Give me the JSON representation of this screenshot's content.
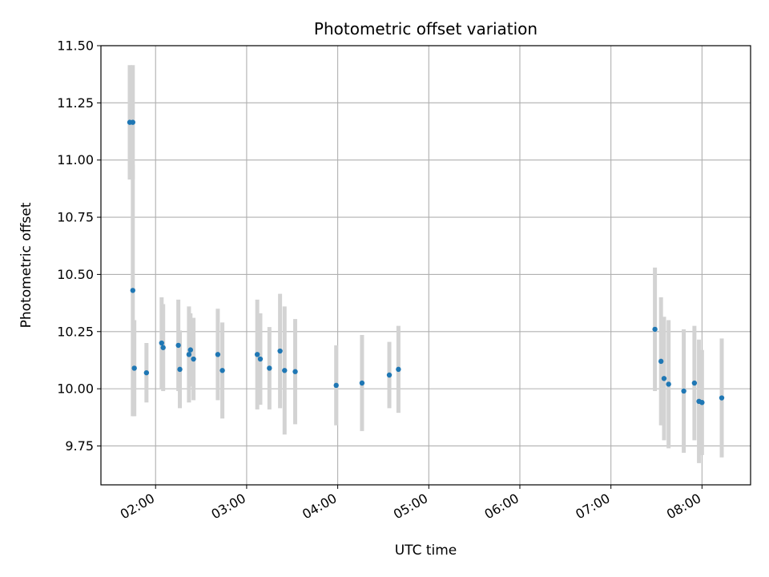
{
  "chart_data": {
    "type": "scatter",
    "title": "Photometric offset variation",
    "xlabel": "UTC time",
    "ylabel": "Photometric offset",
    "xlim": [
      "01:24",
      "08:32"
    ],
    "ylim": [
      9.58,
      11.5
    ],
    "x_ticks": [
      "02:00",
      "03:00",
      "04:00",
      "05:00",
      "06:00",
      "07:00",
      "08:00"
    ],
    "y_ticks": [
      "9.75",
      "10.00",
      "10.25",
      "10.50",
      "10.75",
      "11.00",
      "11.25",
      "11.50"
    ],
    "grid": true,
    "point_color": "#1f77b4",
    "errorbar_color": "#d3d3d3",
    "points": [
      {
        "t": "01:43",
        "y": 11.165,
        "err": 0.25
      },
      {
        "t": "01:45",
        "y": 11.165,
        "err": 0.25
      },
      {
        "t": "01:45",
        "y": 10.43,
        "err": 0.55
      },
      {
        "t": "01:46",
        "y": 10.09,
        "err": 0.21
      },
      {
        "t": "01:54",
        "y": 10.07,
        "err": 0.13
      },
      {
        "t": "02:04",
        "y": 10.2,
        "err": 0.2
      },
      {
        "t": "02:05",
        "y": 10.18,
        "err": 0.19
      },
      {
        "t": "02:15",
        "y": 10.19,
        "err": 0.2
      },
      {
        "t": "02:16",
        "y": 10.085,
        "err": 0.17
      },
      {
        "t": "02:22",
        "y": 10.15,
        "err": 0.21
      },
      {
        "t": "02:23",
        "y": 10.17,
        "err": 0.16
      },
      {
        "t": "02:25",
        "y": 10.13,
        "err": 0.18
      },
      {
        "t": "02:41",
        "y": 10.15,
        "err": 0.2
      },
      {
        "t": "02:44",
        "y": 10.08,
        "err": 0.21
      },
      {
        "t": "03:07",
        "y": 10.15,
        "err": 0.24
      },
      {
        "t": "03:09",
        "y": 10.13,
        "err": 0.2
      },
      {
        "t": "03:15",
        "y": 10.09,
        "err": 0.18
      },
      {
        "t": "03:22",
        "y": 10.165,
        "err": 0.25
      },
      {
        "t": "03:25",
        "y": 10.08,
        "err": 0.28
      },
      {
        "t": "03:32",
        "y": 10.075,
        "err": 0.23
      },
      {
        "t": "03:59",
        "y": 10.015,
        "err": 0.175
      },
      {
        "t": "04:16",
        "y": 10.025,
        "err": 0.21
      },
      {
        "t": "04:34",
        "y": 10.06,
        "err": 0.145
      },
      {
        "t": "04:40",
        "y": 10.085,
        "err": 0.19
      },
      {
        "t": "07:29",
        "y": 10.26,
        "err": 0.27
      },
      {
        "t": "07:33",
        "y": 10.12,
        "err": 0.28
      },
      {
        "t": "07:35",
        "y": 10.045,
        "err": 0.27
      },
      {
        "t": "07:38",
        "y": 10.02,
        "err": 0.28
      },
      {
        "t": "07:48",
        "y": 9.99,
        "err": 0.27
      },
      {
        "t": "07:55",
        "y": 10.025,
        "err": 0.25
      },
      {
        "t": "07:58",
        "y": 9.945,
        "err": 0.27
      },
      {
        "t": "08:00",
        "y": 9.94,
        "err": 0.23
      },
      {
        "t": "08:13",
        "y": 9.96,
        "err": 0.26
      }
    ]
  }
}
